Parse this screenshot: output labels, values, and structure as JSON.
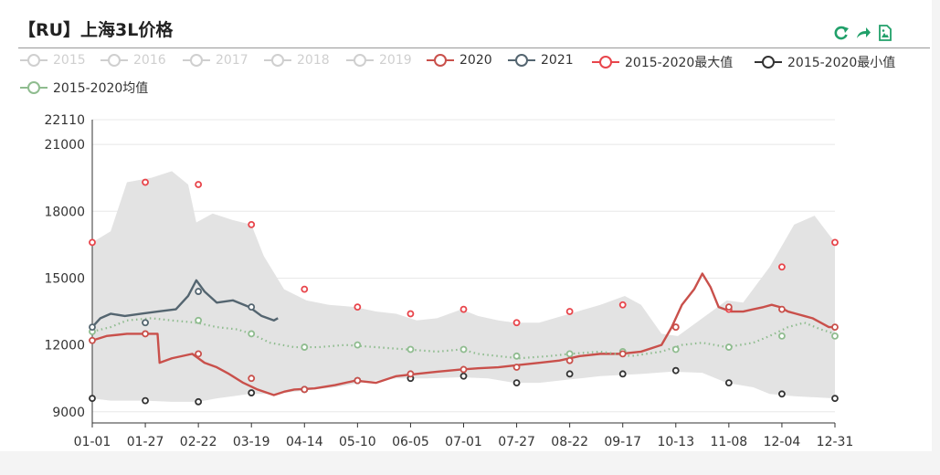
{
  "title": "【RU】上海3L价格",
  "toolbox": [
    {
      "icon": "refresh-icon",
      "color": "#21a06a"
    },
    {
      "icon": "share-arrow-icon",
      "color": "#21a06a"
    },
    {
      "icon": "save-image-icon",
      "color": "#21a06a"
    }
  ],
  "legend": [
    {
      "label": "2015",
      "color": "#cfcfcf",
      "active": false
    },
    {
      "label": "2016",
      "color": "#cfcfcf",
      "active": false
    },
    {
      "label": "2017",
      "color": "#cfcfcf",
      "active": false
    },
    {
      "label": "2018",
      "color": "#cfcfcf",
      "active": false
    },
    {
      "label": "2019",
      "color": "#cfcfcf",
      "active": false
    },
    {
      "label": "2020",
      "color": "#c9504b",
      "active": true
    },
    {
      "label": "2021",
      "color": "#546570",
      "active": true
    },
    {
      "label": "2015-2020最大值",
      "color": "#e8454b",
      "active": true
    },
    {
      "label": "2015-2020最小值",
      "color": "#333333",
      "active": true
    },
    {
      "label": "2015-2020均值",
      "color": "#8fbc8f",
      "active": true
    }
  ],
  "chart_data": {
    "type": "line",
    "x_ticks": [
      "01-01",
      "01-27",
      "02-22",
      "03-19",
      "04-14",
      "05-10",
      "06-05",
      "07-01",
      "07-27",
      "08-22",
      "09-17",
      "10-13",
      "11-08",
      "12-04",
      "12-31"
    ],
    "ylim": [
      8500,
      22110
    ],
    "y_ticks": [
      9000,
      12000,
      15000,
      18000,
      21000,
      22110
    ],
    "grid": true,
    "band": {
      "name": "range",
      "color": "#e3e3e3",
      "upper": [
        [
          1,
          16600
        ],
        [
          10,
          17100
        ],
        [
          18,
          19300
        ],
        [
          30,
          19500
        ],
        [
          40,
          19800
        ],
        [
          48,
          19200
        ],
        [
          52,
          17500
        ],
        [
          60,
          17900
        ],
        [
          70,
          17600
        ],
        [
          79,
          17400
        ],
        [
          85,
          16000
        ],
        [
          95,
          14500
        ],
        [
          106,
          14000
        ],
        [
          117,
          13800
        ],
        [
          130,
          13700
        ],
        [
          140,
          13500
        ],
        [
          150,
          13400
        ],
        [
          160,
          13100
        ],
        [
          170,
          13200
        ],
        [
          182,
          13600
        ],
        [
          190,
          13300
        ],
        [
          200,
          13100
        ],
        [
          208,
          13000
        ],
        [
          220,
          13000
        ],
        [
          235,
          13400
        ],
        [
          250,
          13800
        ],
        [
          262,
          14200
        ],
        [
          270,
          13800
        ],
        [
          280,
          12500
        ],
        [
          288,
          12400
        ],
        [
          300,
          13200
        ],
        [
          312,
          14000
        ],
        [
          320,
          13900
        ],
        [
          333,
          15500
        ],
        [
          345,
          17400
        ],
        [
          355,
          17800
        ],
        [
          365,
          16600
        ]
      ],
      "lower": [
        [
          1,
          9600
        ],
        [
          10,
          9500
        ],
        [
          27,
          9500
        ],
        [
          40,
          9450
        ],
        [
          53,
          9450
        ],
        [
          62,
          9600
        ],
        [
          78,
          9800
        ],
        [
          90,
          9800
        ],
        [
          105,
          9950
        ],
        [
          120,
          10100
        ],
        [
          135,
          10350
        ],
        [
          150,
          10500
        ],
        [
          165,
          10500
        ],
        [
          182,
          10550
        ],
        [
          195,
          10500
        ],
        [
          208,
          10300
        ],
        [
          220,
          10300
        ],
        [
          235,
          10450
        ],
        [
          250,
          10600
        ],
        [
          270,
          10700
        ],
        [
          285,
          10800
        ],
        [
          300,
          10750
        ],
        [
          312,
          10300
        ],
        [
          325,
          10100
        ],
        [
          333,
          9800
        ],
        [
          345,
          9700
        ],
        [
          365,
          9600
        ]
      ]
    },
    "series": [
      {
        "name": "2020",
        "color": "#c9504b",
        "style": "solid",
        "points": [
          [
            1,
            12200
          ],
          [
            8,
            12400
          ],
          [
            18,
            12500
          ],
          [
            33,
            12500
          ],
          [
            34,
            11200
          ],
          [
            40,
            11400
          ],
          [
            50,
            11600
          ],
          [
            56,
            11200
          ],
          [
            62,
            11000
          ],
          [
            68,
            10700
          ],
          [
            75,
            10300
          ],
          [
            82,
            10000
          ],
          [
            90,
            9750
          ],
          [
            95,
            9900
          ],
          [
            100,
            10000
          ],
          [
            110,
            10050
          ],
          [
            120,
            10200
          ],
          [
            130,
            10400
          ],
          [
            140,
            10300
          ],
          [
            150,
            10600
          ],
          [
            160,
            10700
          ],
          [
            170,
            10800
          ],
          [
            182,
            10900
          ],
          [
            190,
            10950
          ],
          [
            200,
            11000
          ],
          [
            210,
            11100
          ],
          [
            220,
            11200
          ],
          [
            230,
            11300
          ],
          [
            240,
            11500
          ],
          [
            250,
            11600
          ],
          [
            260,
            11600
          ],
          [
            270,
            11700
          ],
          [
            280,
            12000
          ],
          [
            285,
            12800
          ],
          [
            290,
            13800
          ],
          [
            296,
            14500
          ],
          [
            300,
            15200
          ],
          [
            304,
            14600
          ],
          [
            308,
            13700
          ],
          [
            314,
            13500
          ],
          [
            320,
            13500
          ],
          [
            325,
            13600
          ],
          [
            330,
            13700
          ],
          [
            334,
            13800
          ],
          [
            338,
            13700
          ],
          [
            342,
            13500
          ],
          [
            346,
            13400
          ],
          [
            350,
            13300
          ],
          [
            354,
            13200
          ],
          [
            358,
            13000
          ],
          [
            362,
            12800
          ],
          [
            365,
            12800
          ]
        ]
      },
      {
        "name": "2021",
        "color": "#546570",
        "style": "solid",
        "points": [
          [
            1,
            12800
          ],
          [
            5,
            13200
          ],
          [
            10,
            13400
          ],
          [
            17,
            13300
          ],
          [
            25,
            13400
          ],
          [
            33,
            13500
          ],
          [
            42,
            13600
          ],
          [
            48,
            14200
          ],
          [
            52,
            14900
          ],
          [
            56,
            14400
          ],
          [
            62,
            13900
          ],
          [
            70,
            14000
          ],
          [
            78,
            13700
          ],
          [
            84,
            13300
          ],
          [
            90,
            13100
          ],
          [
            92,
            13200
          ]
        ]
      },
      {
        "name": "2015-2020均值",
        "color": "#8fbc8f",
        "style": "dotted",
        "points": [
          [
            1,
            12600
          ],
          [
            10,
            12800
          ],
          [
            18,
            13100
          ],
          [
            30,
            13200
          ],
          [
            40,
            13100
          ],
          [
            52,
            13000
          ],
          [
            62,
            12800
          ],
          [
            72,
            12700
          ],
          [
            79,
            12500
          ],
          [
            88,
            12100
          ],
          [
            100,
            11900
          ],
          [
            112,
            11900
          ],
          [
            125,
            12000
          ],
          [
            140,
            11900
          ],
          [
            155,
            11800
          ],
          [
            170,
            11700
          ],
          [
            182,
            11800
          ],
          [
            190,
            11600
          ],
          [
            200,
            11500
          ],
          [
            210,
            11400
          ],
          [
            225,
            11500
          ],
          [
            235,
            11600
          ],
          [
            250,
            11700
          ],
          [
            265,
            11500
          ],
          [
            280,
            11700
          ],
          [
            290,
            12000
          ],
          [
            300,
            12100
          ],
          [
            312,
            11900
          ],
          [
            325,
            12100
          ],
          [
            333,
            12400
          ],
          [
            342,
            12800
          ],
          [
            350,
            13000
          ],
          [
            358,
            12700
          ],
          [
            365,
            12500
          ]
        ]
      }
    ],
    "markers": {
      "max": {
        "name": "2015-2020最大值",
        "color": "#e8454b",
        "points": [
          [
            1,
            16600
          ],
          [
            27,
            19300
          ],
          [
            53,
            19200
          ],
          [
            79,
            17400
          ],
          [
            105,
            14500
          ],
          [
            131,
            13700
          ],
          [
            157,
            13400
          ],
          [
            183,
            13600
          ],
          [
            209,
            13000
          ],
          [
            235,
            13500
          ],
          [
            261,
            13800
          ],
          [
            287,
            12800
          ],
          [
            313,
            13600
          ],
          [
            339,
            15500
          ],
          [
            365,
            16600
          ]
        ]
      },
      "min": {
        "name": "2015-2020最小值",
        "color": "#333333",
        "points": [
          [
            1,
            9600
          ],
          [
            27,
            9500
          ],
          [
            53,
            9450
          ],
          [
            79,
            9850
          ],
          [
            105,
            10000
          ],
          [
            131,
            10400
          ],
          [
            157,
            10500
          ],
          [
            183,
            10600
          ],
          [
            209,
            10300
          ],
          [
            235,
            10700
          ],
          [
            261,
            10700
          ],
          [
            287,
            10850
          ],
          [
            313,
            10300
          ],
          [
            339,
            9800
          ],
          [
            365,
            9600
          ]
        ]
      },
      "mean": {
        "name": "2015-2020均值",
        "color": "#8fbc8f",
        "points": [
          [
            1,
            12600
          ],
          [
            27,
            13000
          ],
          [
            53,
            13100
          ],
          [
            79,
            12500
          ],
          [
            105,
            11900
          ],
          [
            131,
            12000
          ],
          [
            157,
            11800
          ],
          [
            183,
            11800
          ],
          [
            209,
            11500
          ],
          [
            235,
            11600
          ],
          [
            261,
            11700
          ],
          [
            287,
            11800
          ],
          [
            313,
            11900
          ],
          [
            339,
            12400
          ],
          [
            365,
            12400
          ]
        ]
      },
      "y2020": {
        "name": "2020",
        "color": "#c9504b",
        "points": [
          [
            1,
            12200
          ],
          [
            27,
            12500
          ],
          [
            53,
            11600
          ],
          [
            79,
            10500
          ],
          [
            105,
            10000
          ],
          [
            131,
            10400
          ],
          [
            157,
            10700
          ],
          [
            183,
            10900
          ],
          [
            209,
            11000
          ],
          [
            235,
            11300
          ],
          [
            261,
            11600
          ],
          [
            287,
            12800
          ],
          [
            313,
            13700
          ],
          [
            339,
            13600
          ],
          [
            365,
            12800
          ]
        ]
      },
      "y2021": {
        "name": "2021",
        "color": "#546570",
        "points": [
          [
            1,
            12800
          ],
          [
            27,
            13000
          ],
          [
            53,
            14400
          ],
          [
            79,
            13700
          ]
        ]
      }
    }
  }
}
